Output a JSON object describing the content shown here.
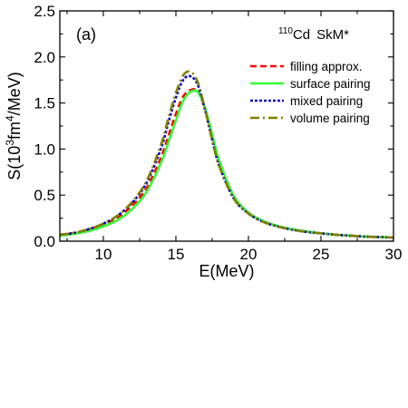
{
  "chart_data": {
    "type": "line",
    "panel_label": "(a)",
    "nucleus_prefix": "110",
    "nucleus_symbol": "Cd",
    "force": "SkM*",
    "xlabel": "E(MeV)",
    "ylabel_parts": [
      "S(10",
      "3",
      "fm",
      "4",
      "/MeV)"
    ],
    "xlim": [
      7,
      30
    ],
    "ylim": [
      0,
      2.5
    ],
    "xticks": [
      10,
      15,
      20,
      25,
      30
    ],
    "yticks": [
      0.0,
      0.5,
      1.0,
      1.5,
      2.0,
      2.5
    ],
    "ytick_labels": [
      "0.0",
      "0.5",
      "1.0",
      "1.5",
      "2.0",
      "2.5"
    ],
    "grid": false,
    "legend_position": "top-right",
    "x": [
      7,
      8,
      9,
      10,
      11,
      12,
      13,
      14,
      14.5,
      15,
      15.5,
      16,
      16.5,
      17,
      17.5,
      18,
      19,
      20,
      21,
      22,
      23,
      24,
      25,
      26,
      27,
      28,
      29,
      30
    ],
    "series": [
      {
        "name": "filling approx.",
        "color": "#ff0000",
        "dash": "7,4",
        "values": [
          0.07,
          0.09,
          0.13,
          0.18,
          0.26,
          0.39,
          0.58,
          0.92,
          1.15,
          1.38,
          1.57,
          1.64,
          1.63,
          1.44,
          1.15,
          0.86,
          0.49,
          0.31,
          0.22,
          0.165,
          0.13,
          0.105,
          0.085,
          0.07,
          0.06,
          0.05,
          0.045,
          0.04
        ]
      },
      {
        "name": "surface pairing",
        "color": "#33ff33",
        "dash": "",
        "values": [
          0.06,
          0.08,
          0.11,
          0.16,
          0.23,
          0.35,
          0.54,
          0.86,
          1.08,
          1.31,
          1.52,
          1.62,
          1.62,
          1.45,
          1.16,
          0.87,
          0.49,
          0.31,
          0.22,
          0.165,
          0.13,
          0.105,
          0.085,
          0.07,
          0.06,
          0.05,
          0.045,
          0.04
        ]
      },
      {
        "name": "mixed pairing",
        "color": "#0000cc",
        "dash": "3,2",
        "values": [
          0.07,
          0.09,
          0.13,
          0.19,
          0.28,
          0.42,
          0.64,
          1.02,
          1.3,
          1.56,
          1.75,
          1.79,
          1.7,
          1.43,
          1.1,
          0.81,
          0.46,
          0.3,
          0.21,
          0.16,
          0.125,
          0.1,
          0.085,
          0.07,
          0.06,
          0.05,
          0.045,
          0.04
        ]
      },
      {
        "name": "volume pairing",
        "color": "#808000",
        "dash": "10,4,2,4",
        "values": [
          0.07,
          0.09,
          0.13,
          0.19,
          0.28,
          0.43,
          0.66,
          1.06,
          1.35,
          1.61,
          1.8,
          1.84,
          1.73,
          1.44,
          1.1,
          0.81,
          0.46,
          0.3,
          0.21,
          0.16,
          0.125,
          0.1,
          0.085,
          0.07,
          0.06,
          0.05,
          0.045,
          0.04
        ]
      }
    ]
  }
}
